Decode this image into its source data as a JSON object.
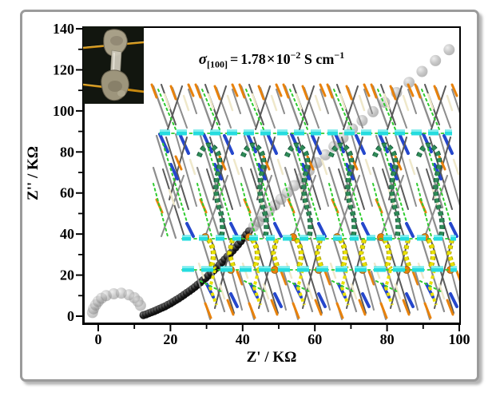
{
  "annotation": {
    "sigma": "σ",
    "subscript": "[100]",
    "equals": "=",
    "value": "1.78",
    "times": "×",
    "base": "10",
    "exponent": "−2",
    "unit": " S cm",
    "unit_exponent": "−1"
  },
  "chart_data": {
    "type": "scatter",
    "title": "",
    "xlabel": "Z' / KΩ",
    "ylabel": "Z'' / KΩ",
    "xlim": [
      -4.4,
      100.4
    ],
    "ylim": [
      -4.3,
      141.2
    ],
    "grid": false,
    "legend": "none",
    "x_ticks": [
      0,
      20,
      40,
      60,
      80,
      100
    ],
    "x_minor_ticks": [
      10,
      30,
      50,
      70,
      90
    ],
    "y_ticks": [
      0,
      20,
      40,
      60,
      80,
      100,
      120,
      140
    ],
    "y_minor_ticks": [
      10,
      30,
      50,
      70,
      90,
      110,
      130
    ],
    "annotation_text": "σ[100] = 1.78×10⁻² S cm⁻¹",
    "series": [
      {
        "name": "high-frequency-arc",
        "marker": "sphere",
        "color": "#8f8f8f",
        "opacity": 0.5,
        "radius": 7,
        "points": [
          [
            -1.6,
            1.8
          ],
          [
            -1.3,
            3.6
          ],
          [
            -0.7,
            5.5
          ],
          [
            0,
            7.2
          ],
          [
            0.9,
            8.7
          ],
          [
            2.2,
            10.0
          ],
          [
            4.3,
            10.9
          ],
          [
            6.4,
            11.2
          ],
          [
            8.5,
            10.4
          ],
          [
            10,
            9.0
          ],
          [
            11,
            7.2
          ],
          [
            11.7,
            5.2
          ]
        ]
      },
      {
        "name": "main-arc-dense",
        "marker": "sphere",
        "color": "#111111",
        "opacity": 0.95,
        "radius": 5,
        "points": [
          [
            12.5,
            0.5
          ],
          [
            13.25,
            0.9
          ],
          [
            14,
            1.4
          ],
          [
            14.75,
            1.9
          ],
          [
            15.5,
            2.4
          ],
          [
            16.25,
            3.0
          ],
          [
            17,
            3.6
          ],
          [
            17.75,
            4.2
          ],
          [
            18.5,
            4.8
          ],
          [
            19.25,
            5.5
          ],
          [
            20,
            6.2
          ],
          [
            20.75,
            7.0
          ],
          [
            21.5,
            7.8
          ],
          [
            22.25,
            8.6
          ],
          [
            23,
            9.5
          ],
          [
            23.75,
            10.4
          ],
          [
            24.5,
            11.3
          ],
          [
            25.25,
            12.2
          ],
          [
            26,
            13.2
          ],
          [
            26.75,
            14.2
          ],
          [
            27.5,
            15.3
          ],
          [
            28.25,
            16.4
          ],
          [
            29,
            17.5
          ],
          [
            29.75,
            18.6
          ],
          [
            30.5,
            19.8
          ],
          [
            31.25,
            21.0
          ],
          [
            32,
            22.3
          ],
          [
            32.75,
            23.5
          ],
          [
            33.5,
            24.8
          ],
          [
            34.25,
            26.2
          ],
          [
            35,
            27.6
          ],
          [
            35.75,
            29.0
          ],
          [
            36.5,
            30.4
          ],
          [
            37.25,
            31.9
          ],
          [
            38,
            33.4
          ],
          [
            38.75,
            34.9
          ],
          [
            39.5,
            36.5
          ],
          [
            40.25,
            38.1
          ],
          [
            41,
            39.7
          ],
          [
            41.75,
            41.4
          ]
        ]
      },
      {
        "name": "low-frequency-tail",
        "marker": "sphere",
        "color": "#9a9a9a",
        "opacity": 0.55,
        "radius": 7,
        "points": [
          [
            43.1,
            43.8
          ],
          [
            44.4,
            46.0
          ],
          [
            45.8,
            48.5
          ],
          [
            47.3,
            51.2
          ],
          [
            48.9,
            54.0
          ],
          [
            50.6,
            57.0
          ],
          [
            52.4,
            60.2
          ],
          [
            54.3,
            63.6
          ],
          [
            56.3,
            67.2
          ],
          [
            58.4,
            70.9
          ],
          [
            60.6,
            74.7
          ],
          [
            62.9,
            78.6
          ],
          [
            65.3,
            82.7
          ],
          [
            67.8,
            86.9
          ],
          [
            70.4,
            91.2
          ],
          [
            73.1,
            95.3
          ],
          [
            76.1,
            99.6
          ],
          [
            79.3,
            104.2
          ],
          [
            82.6,
            108.9
          ],
          [
            86.1,
            113.9
          ],
          [
            89.7,
            119.2
          ],
          [
            93.4,
            124.5
          ],
          [
            97.2,
            129.8
          ]
        ]
      }
    ]
  },
  "structure_art": {
    "colors": {
      "stick_gray": "#8d8d8d",
      "stick_dark": "#5a5a5a",
      "orange": "#E8820C",
      "cream": "#EFE8CA",
      "blue": "#2547CC",
      "teal_bead": "#2E8B57",
      "teal_bead_dark": "#17543a",
      "yellow_bead": "#E8E000",
      "yellow_bead_dark": "#a89c00",
      "green_dot": "#2ECC2E",
      "cyan_dash": "#25DCDF"
    }
  },
  "figure": {
    "frame_color": "#9b9b9b",
    "axis_color": "#000000"
  }
}
